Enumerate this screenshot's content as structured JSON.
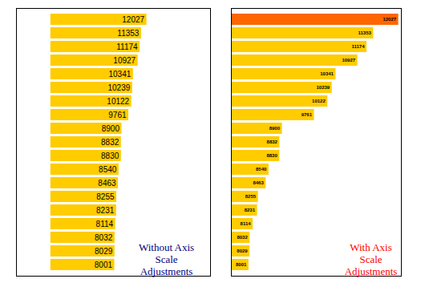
{
  "chart_data": [
    {
      "type": "bar",
      "orientation": "horizontal",
      "annotation": "Without Axis\nScale\nAdjustments",
      "categories": [
        null,
        null,
        null,
        null,
        null,
        null,
        null,
        null,
        null,
        null,
        null,
        null,
        null,
        null,
        null,
        null,
        null,
        null,
        null
      ],
      "values": [
        12027,
        11353,
        11174,
        10927,
        10341,
        10239,
        10122,
        9761,
        8900,
        8832,
        8830,
        8540,
        8463,
        8255,
        8231,
        8114,
        8032,
        8029,
        8001
      ],
      "color": "#ffcc00",
      "xlim": [
        -4300,
        20000
      ],
      "tick_labels": false,
      "data_labels": true
    },
    {
      "type": "bar",
      "orientation": "horizontal",
      "annotation": "With Axis\nScale\nAdjustments",
      "categories": [
        null,
        null,
        null,
        null,
        null,
        null,
        null,
        null,
        null,
        null,
        null,
        null,
        null,
        null,
        null,
        null,
        null,
        null,
        null
      ],
      "values": [
        12027,
        11353,
        11174,
        10927,
        10341,
        10239,
        10122,
        9761,
        8900,
        8832,
        8830,
        8540,
        8463,
        8255,
        8231,
        8114,
        8032,
        8029,
        8001
      ],
      "colors": [
        "#ff6600",
        "#ffcc00",
        "#ffcc00",
        "#ffcc00",
        "#ffcc00",
        "#ffcc00",
        "#ffcc00",
        "#ffcc00",
        "#ffcc00",
        "#ffcc00",
        "#ffcc00",
        "#ffcc00",
        "#ffcc00",
        "#ffcc00",
        "#ffcc00",
        "#ffcc00",
        "#ffcc00",
        "#ffcc00",
        "#ffcc00"
      ],
      "xlim": [
        7530,
        12100
      ],
      "tick_labels": false,
      "data_labels": true
    }
  ]
}
